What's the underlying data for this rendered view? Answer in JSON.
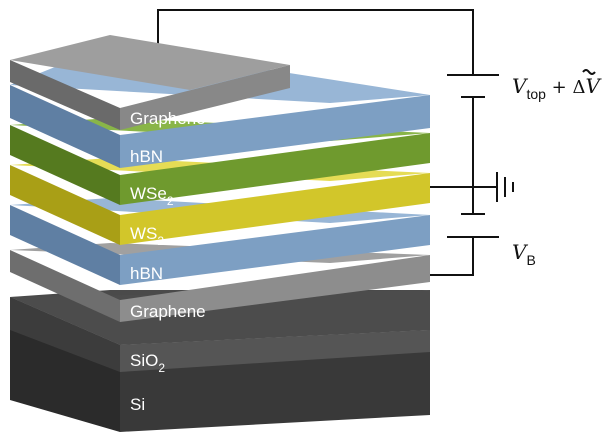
{
  "layers": {
    "graphene_top": {
      "label": "Graphene",
      "color": "#8a8a8a"
    },
    "hbn_top": {
      "label": "hBN",
      "color": "#7d9fc3"
    },
    "wse2": {
      "label": "WSe",
      "sub": "2",
      "color": "#6f9a2e"
    },
    "ws2": {
      "label": "WS",
      "sub": "2",
      "color": "#d2c62a"
    },
    "hbn_bottom": {
      "label": "hBN",
      "color": "#7d9fc3"
    },
    "graphene_bottom": {
      "label": "Graphene",
      "color": "#8a8a8a"
    },
    "sio2": {
      "label": "SiO",
      "sub": "2",
      "color": "#505050"
    },
    "si": {
      "label": "Si",
      "color": "#363636"
    }
  },
  "circuit": {
    "v_top": {
      "main": "V",
      "sub": "top",
      "suffix": " + Δ",
      "tilde_v": "V"
    },
    "v_b": {
      "main": "V",
      "sub": "B"
    }
  }
}
